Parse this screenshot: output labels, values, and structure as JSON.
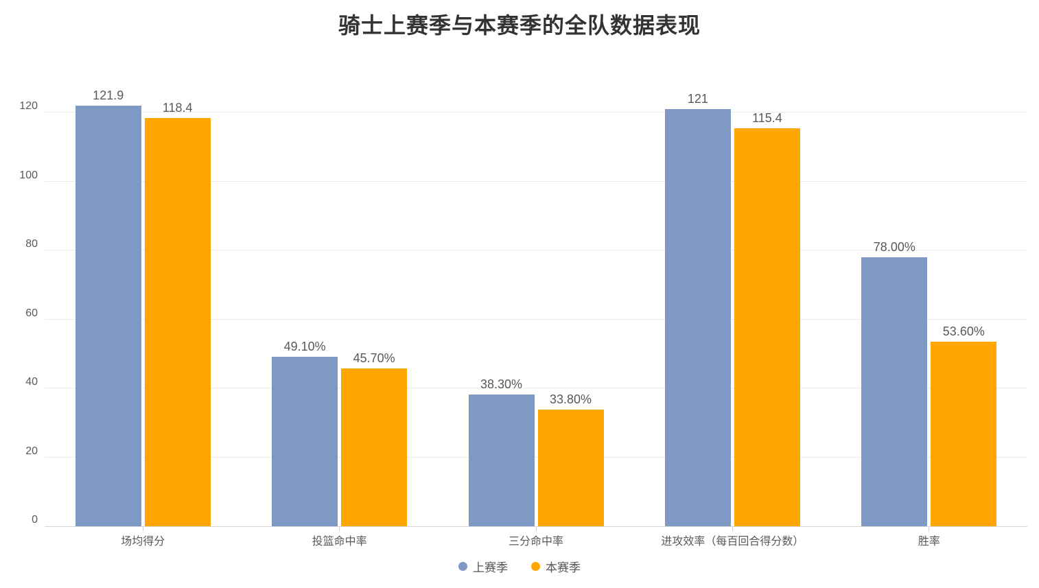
{
  "chart_data": {
    "type": "bar",
    "title": "骑士上赛季与本赛季的全队数据表现",
    "categories": [
      "场均得分",
      "投篮命中率",
      "三分命中率",
      "进攻效率（每百回合得分数）",
      "胜率"
    ],
    "series": [
      {
        "name": "上赛季",
        "color": "#7E99C3",
        "values": [
          121.9,
          49.1,
          38.3,
          121,
          78
        ],
        "data_labels": [
          "121.9",
          "49.10%",
          "38.30%",
          "121",
          "78.00%"
        ]
      },
      {
        "name": "本赛季",
        "color": "#FFA600",
        "values": [
          118.4,
          45.7,
          33.8,
          115.4,
          53.6
        ],
        "data_labels": [
          "118.4",
          "45.70%",
          "33.80%",
          "115.4",
          "53.60%"
        ]
      }
    ],
    "xlabel": "",
    "ylabel": "",
    "ylim": [
      0,
      125
    ],
    "yticks": [
      0,
      20,
      40,
      60,
      80,
      100,
      120
    ],
    "grid": "horizontal",
    "legend_position": "bottom",
    "colors": {
      "title_text": "#333333",
      "axis_text": "#595959",
      "grid_line": "#ebebeb",
      "axis_line": "#d4d4d4",
      "background": "#ffffff"
    }
  }
}
